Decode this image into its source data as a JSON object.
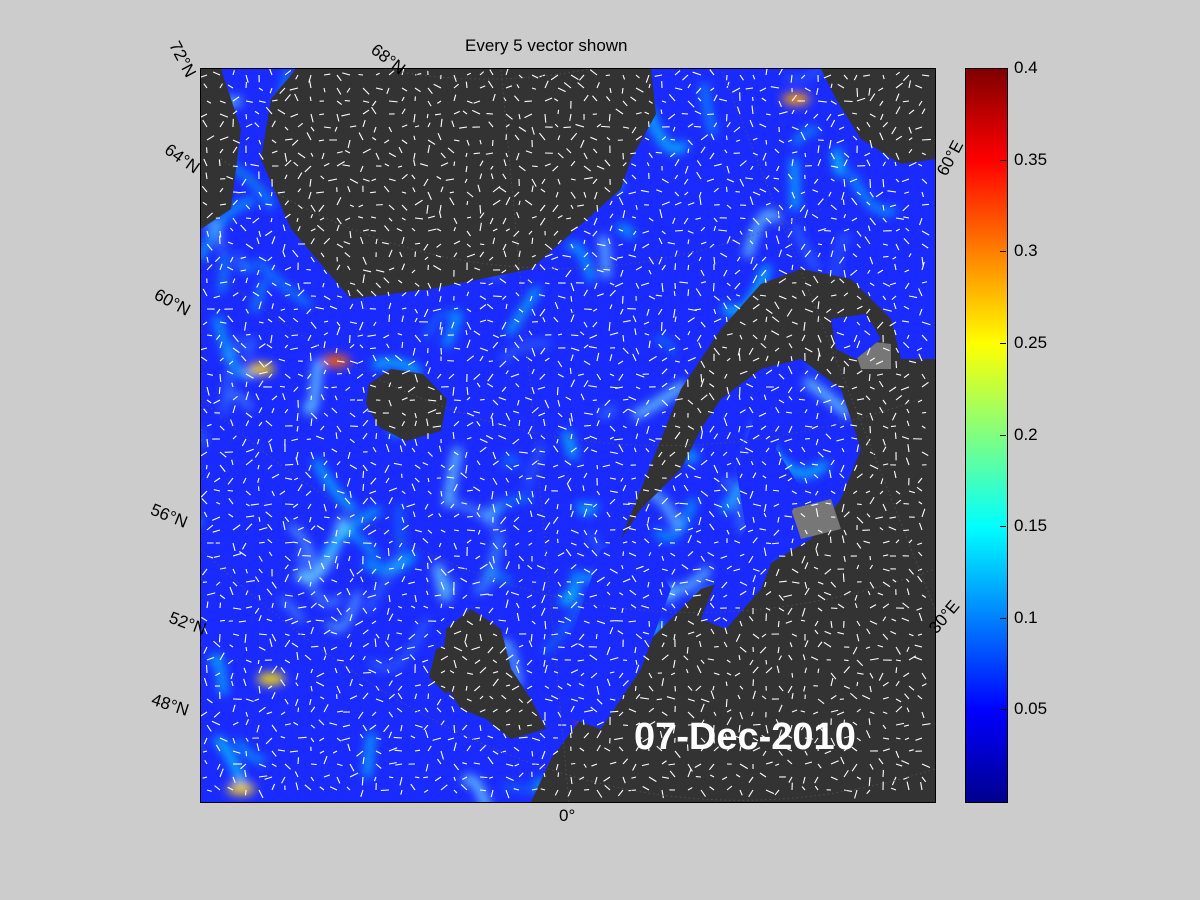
{
  "title": "Every 5 vector shown",
  "date_label": "07-Dec-2010",
  "lat_labels": [
    "72°N",
    "68°N",
    "64°N",
    "60°N",
    "56°N",
    "52°N",
    "48°N"
  ],
  "lon_labels": [
    "0°",
    "30°E",
    "60°E"
  ],
  "colorbar": {
    "min": 0,
    "max": 0.4,
    "ticks": [
      "0.4",
      "0.35",
      "0.3",
      "0.25",
      "0.2",
      "0.15",
      "0.1",
      "0.05"
    ],
    "colormap": "jet"
  },
  "colors": {
    "background": "#cccccc",
    "land": "#333333",
    "ice": "#777777",
    "ocean_low": "#1a2bff",
    "vector": "#ffffff"
  }
}
